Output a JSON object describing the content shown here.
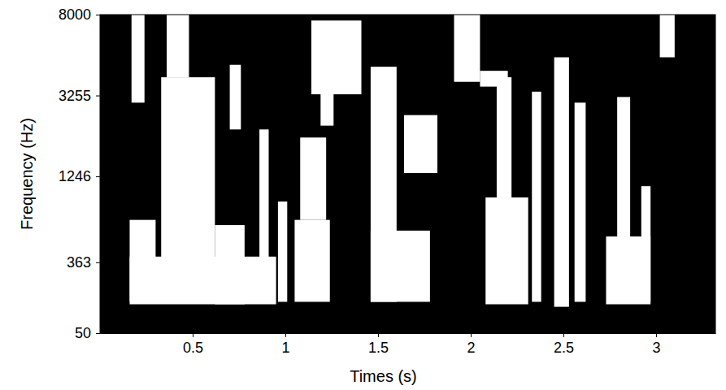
{
  "chart_data": {
    "type": "heatmap",
    "x_label": "Times (s)",
    "y_label": "Frequency (Hz)",
    "xlim": [
      0,
      3.32
    ],
    "xticks": [
      0.5,
      1,
      1.5,
      2,
      2.5,
      3
    ],
    "ylim": [
      50,
      8000
    ],
    "yticks": [
      50,
      363,
      1246,
      3255,
      8000
    ],
    "color": "#ffffff",
    "regions": [
      [
        0.16,
        0.95,
        150,
        400
      ],
      [
        0.16,
        0.3,
        162,
        700
      ],
      [
        0.17,
        0.24,
        3000,
        8000
      ],
      [
        0.33,
        0.62,
        162,
        4000
      ],
      [
        0.36,
        0.48,
        4000,
        8000
      ],
      [
        0.62,
        0.78,
        150,
        650
      ],
      [
        0.7,
        0.76,
        2200,
        4600
      ],
      [
        0.86,
        0.91,
        160,
        2200
      ],
      [
        0.96,
        1.01,
        160,
        900
      ],
      [
        1.05,
        1.24,
        160,
        700
      ],
      [
        1.08,
        1.22,
        700,
        2000
      ],
      [
        1.14,
        1.41,
        3300,
        7500
      ],
      [
        1.19,
        1.26,
        2300,
        5000
      ],
      [
        1.46,
        1.6,
        160,
        4500
      ],
      [
        1.46,
        1.78,
        160,
        600
      ],
      [
        1.64,
        1.82,
        1300,
        2600
      ],
      [
        1.91,
        2.05,
        3800,
        8000
      ],
      [
        2.05,
        2.2,
        3600,
        4300
      ],
      [
        2.08,
        2.31,
        150,
        950
      ],
      [
        2.14,
        2.22,
        950,
        4000
      ],
      [
        2.33,
        2.38,
        160,
        3400
      ],
      [
        2.45,
        2.53,
        140,
        5000
      ],
      [
        2.56,
        2.62,
        160,
        3000
      ],
      [
        2.73,
        2.97,
        150,
        550
      ],
      [
        2.79,
        2.86,
        550,
        3200
      ],
      [
        2.92,
        2.97,
        160,
        1100
      ],
      [
        3.02,
        3.1,
        5000,
        8000
      ]
    ]
  }
}
